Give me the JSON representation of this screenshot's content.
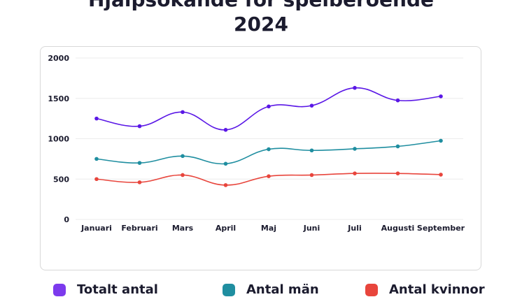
{
  "title_line1": "Hjälpsökande för spelberoende",
  "title_line2": "2024",
  "colors": {
    "purple": "#5a17e6",
    "teal": "#1f8ea0",
    "red": "#e8453c",
    "grid": "#ececec"
  },
  "chart_data": {
    "type": "line",
    "categories": [
      "Januari",
      "Februari",
      "Mars",
      "April",
      "Maj",
      "Juni",
      "Juli",
      "Augusti",
      "September"
    ],
    "ylim": [
      0,
      2000
    ],
    "yticks": [
      0,
      500,
      1000,
      1500,
      2000
    ],
    "grid": true,
    "legend_position": "bottom",
    "series": [
      {
        "name": "Totalt antal",
        "color": "#5a17e6",
        "values": [
          1250,
          1155,
          1330,
          1110,
          1400,
          1410,
          1630,
          1475,
          1525
        ]
      },
      {
        "name": "Antal män",
        "color": "#1f8ea0",
        "values": [
          750,
          700,
          785,
          690,
          870,
          855,
          875,
          905,
          975
        ]
      },
      {
        "name": "Antal kvinnor",
        "color": "#e8453c",
        "values": [
          500,
          460,
          550,
          425,
          535,
          550,
          570,
          570,
          555
        ]
      }
    ]
  },
  "legend": {
    "item1_icon": "square-purple-icon",
    "item2_icon": "square-teal-icon",
    "item3_icon": "square-red-icon"
  }
}
